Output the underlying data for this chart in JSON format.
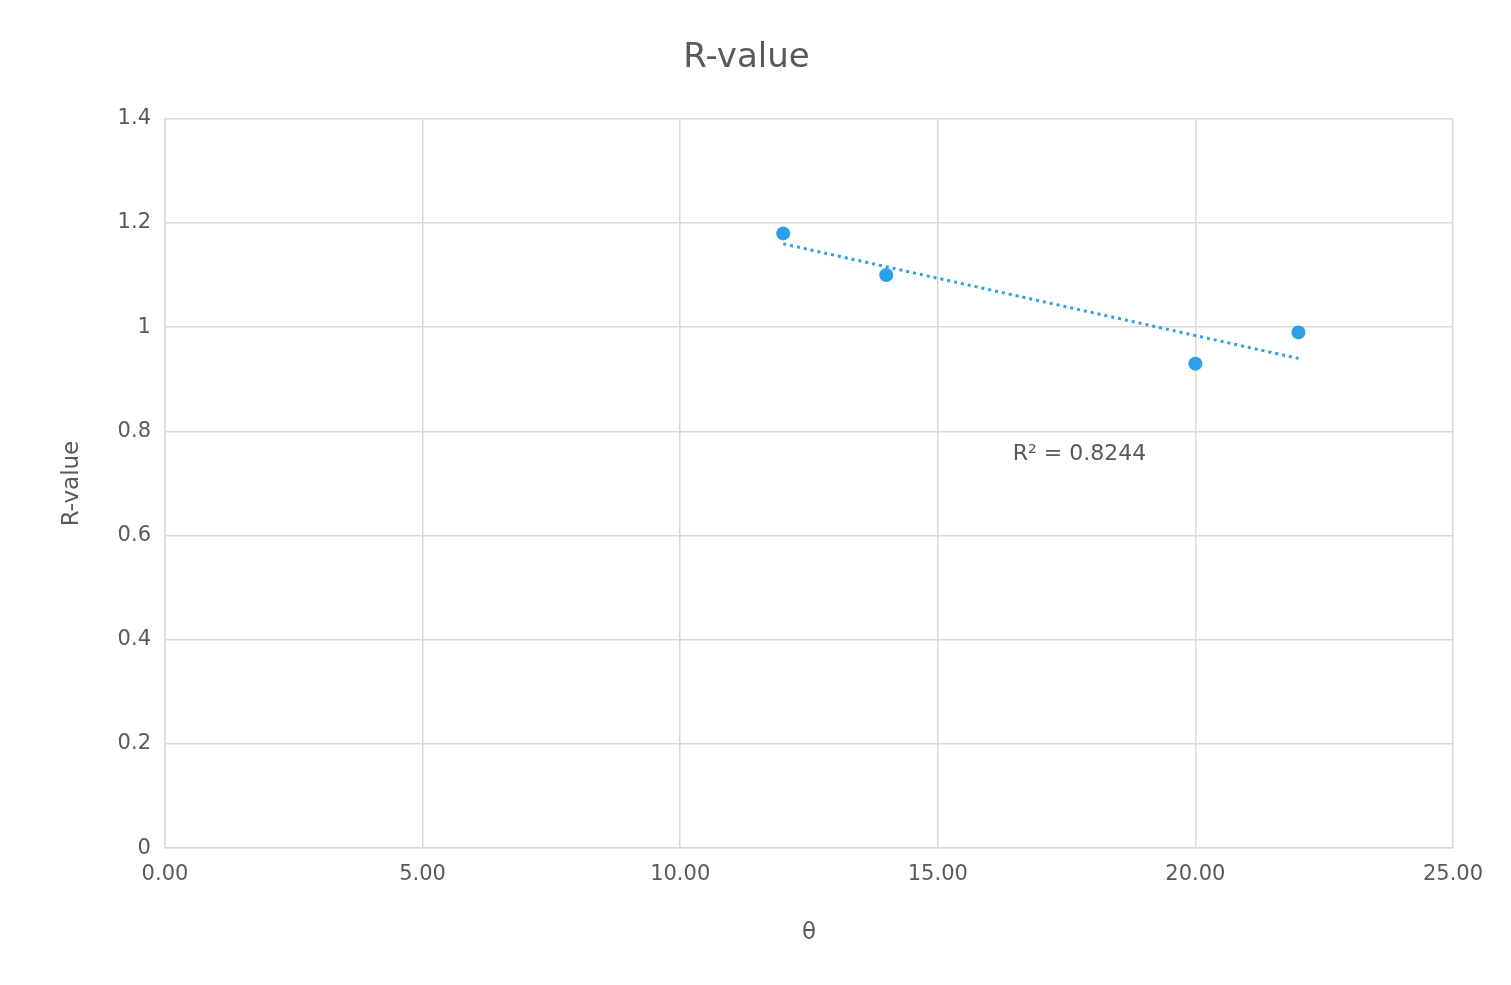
{
  "chart_data": {
    "type": "scatter",
    "title": "R-value",
    "xlabel": "θ",
    "ylabel": "R-value",
    "series": [
      {
        "color": "#2e9fea",
        "x": [
          12,
          14,
          20,
          22
        ],
        "values": [
          1.18,
          1.1,
          0.93,
          0.99
        ],
        "marker": "circle"
      },
      {
        "type": "line",
        "color": "#2e9fea",
        "x": [
          12,
          22
        ],
        "values": [
          1.16,
          0.94
        ],
        "marker": "none",
        "line_style": "dotted"
      }
    ],
    "xlim": [
      0,
      25
    ],
    "xticks": [
      {
        "value": 0,
        "label": "0.00"
      },
      {
        "value": 5,
        "label": "5.00"
      },
      {
        "value": 10,
        "label": "10.00"
      },
      {
        "value": 15,
        "label": "15.00"
      },
      {
        "value": 20,
        "label": "20.00"
      },
      {
        "value": 25,
        "label": "25.00"
      }
    ],
    "ylim": [
      0,
      1.4
    ],
    "yticks": [
      0,
      0.2,
      0.4,
      0.6,
      0.8,
      1,
      1.2,
      1.4
    ],
    "annotations": [
      "R² = 0.8244"
    ],
    "grid": true,
    "legend": false
  }
}
